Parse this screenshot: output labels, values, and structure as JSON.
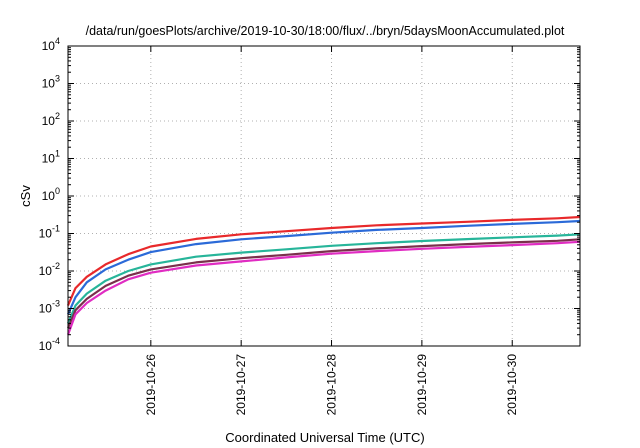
{
  "chart_data": {
    "type": "line",
    "title": "/data/run/goesPlots/archive/2019-10-30/18:00/flux/../bryn/5daysMoonAccumulated.plot",
    "xlabel": "Coordinated Universal Time (UTC)",
    "ylabel": "cSv",
    "y_scale": "log",
    "ylim": [
      0.0001,
      10000
    ],
    "xlim": [
      "2019-10-25T02:00",
      "2019-10-30T18:00"
    ],
    "grid": true,
    "x_ticks": [
      "2019-10-26",
      "2019-10-27",
      "2019-10-28",
      "2019-10-29",
      "2019-10-30"
    ],
    "y_ticks": [
      {
        "mantissa": "10",
        "exp": "-4",
        "value": 0.0001
      },
      {
        "mantissa": "10",
        "exp": "-3",
        "value": 0.001
      },
      {
        "mantissa": "10",
        "exp": "-2",
        "value": 0.01
      },
      {
        "mantissa": "10",
        "exp": "-1",
        "value": 0.1
      },
      {
        "mantissa": "10",
        "exp": "0",
        "value": 1
      },
      {
        "mantissa": "10",
        "exp": "1",
        "value": 10
      },
      {
        "mantissa": "10",
        "exp": "2",
        "value": 100
      },
      {
        "mantissa": "10",
        "exp": "3",
        "value": 1000
      },
      {
        "mantissa": "10",
        "exp": "4",
        "value": 10000
      }
    ],
    "x": [
      "2019-10-25T02:00",
      "2019-10-25T04:00",
      "2019-10-25T07:00",
      "2019-10-25T12:00",
      "2019-10-25T18:00",
      "2019-10-26T00:00",
      "2019-10-26T12:00",
      "2019-10-27T00:00",
      "2019-10-27T12:00",
      "2019-10-28T00:00",
      "2019-10-28T12:00",
      "2019-10-29T00:00",
      "2019-10-29T12:00",
      "2019-10-30T00:00",
      "2019-10-30T12:00",
      "2019-10-30T18:00"
    ],
    "series": [
      {
        "color": "#e8292b",
        "values": [
          0.0012,
          0.0035,
          0.007,
          0.015,
          0.028,
          0.045,
          0.072,
          0.095,
          0.115,
          0.14,
          0.165,
          0.185,
          0.205,
          0.23,
          0.255,
          0.275
        ]
      },
      {
        "color": "#2b6ad8",
        "values": [
          0.0007,
          0.002,
          0.005,
          0.011,
          0.02,
          0.032,
          0.052,
          0.07,
          0.085,
          0.105,
          0.125,
          0.14,
          0.16,
          0.18,
          0.2,
          0.215
        ]
      },
      {
        "color": "#27b59a",
        "values": [
          0.0004,
          0.0012,
          0.0025,
          0.0055,
          0.01,
          0.015,
          0.024,
          0.031,
          0.038,
          0.047,
          0.055,
          0.063,
          0.071,
          0.079,
          0.088,
          0.095
        ]
      },
      {
        "color": "#7a2f4b",
        "values": [
          0.0003,
          0.0009,
          0.0018,
          0.004,
          0.0075,
          0.011,
          0.017,
          0.022,
          0.027,
          0.034,
          0.04,
          0.046,
          0.052,
          0.058,
          0.064,
          0.07
        ]
      },
      {
        "color": "#e02cc2",
        "values": [
          0.0002,
          0.0007,
          0.0014,
          0.003,
          0.006,
          0.009,
          0.014,
          0.018,
          0.023,
          0.029,
          0.034,
          0.039,
          0.044,
          0.049,
          0.055,
          0.06
        ]
      }
    ]
  }
}
